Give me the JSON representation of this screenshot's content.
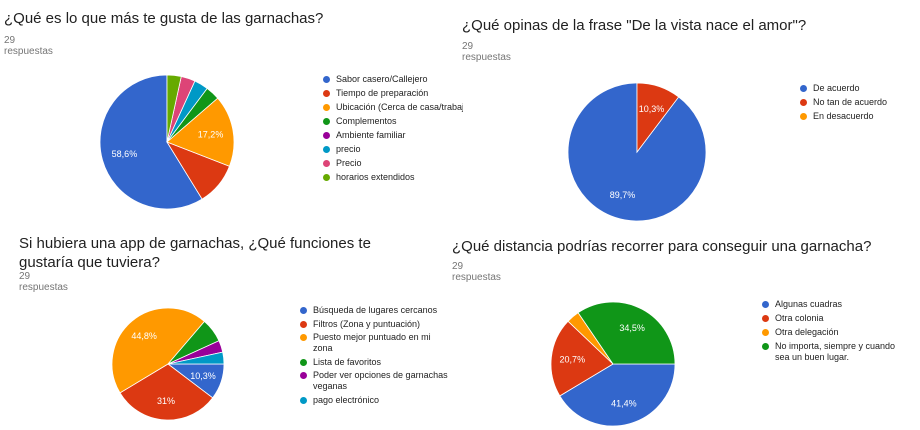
{
  "colors": {
    "blue": "#3366cc",
    "red": "#dc3912",
    "orange": "#ff9900",
    "green": "#109618",
    "purple": "#990099",
    "cyan": "#0099c6",
    "pink": "#dd4477",
    "lime": "#66aa00"
  },
  "chart_data": [
    {
      "type": "pie",
      "title": "¿Qué es lo que más te gusta de las garnachas?",
      "subtitle": "29 respuestas",
      "legend_position": "right",
      "slices": [
        {
          "label": "Sabor casero/Callejero",
          "value": 58.6,
          "color": "#3366cc",
          "data_label": "58,6%"
        },
        {
          "label": "Tiempo de preparación",
          "value": 10.3,
          "color": "#dc3912",
          "data_label": ""
        },
        {
          "label": "Ubicación (Cerca de casa/trabaj",
          "value": 17.2,
          "color": "#ff9900",
          "data_label": "17,2%"
        },
        {
          "label": "Complementos",
          "value": 3.4,
          "color": "#109618",
          "data_label": ""
        },
        {
          "label": "Ambiente familiar",
          "value": 0.0,
          "color": "#990099",
          "data_label": ""
        },
        {
          "label": "precio",
          "value": 3.4,
          "color": "#0099c6",
          "data_label": ""
        },
        {
          "label": "Precio",
          "value": 3.4,
          "color": "#dd4477",
          "data_label": ""
        },
        {
          "label": "horarios extendidos",
          "value": 3.4,
          "color": "#66aa00",
          "data_label": ""
        }
      ]
    },
    {
      "type": "pie",
      "title": "¿Qué opinas de la frase \"De la vista nace el amor\"?",
      "subtitle": "29 respuestas",
      "legend_position": "right",
      "slices": [
        {
          "label": "De acuerdo",
          "value": 89.7,
          "color": "#3366cc",
          "data_label": "89,7%"
        },
        {
          "label": "No tan de acuerdo",
          "value": 10.3,
          "color": "#dc3912",
          "data_label": "10,3%"
        },
        {
          "label": "En desacuerdo",
          "value": 0,
          "color": "#ff9900",
          "data_label": ""
        }
      ]
    },
    {
      "type": "pie",
      "title": "Si hubiera una app de garnachas, ¿Qué funciones te gustaría que tuviera?",
      "subtitle": "29 respuestas",
      "legend_position": "right",
      "slices": [
        {
          "label": "Búsqueda de lugares cercanos",
          "value": 10.3,
          "color": "#3366cc",
          "data_label": "10,3%"
        },
        {
          "label": "Filtros (Zona y puntuación)",
          "value": 31.0,
          "color": "#dc3912",
          "data_label": "31%"
        },
        {
          "label": "Puesto mejor puntuado en mi zona",
          "value": 44.8,
          "color": "#ff9900",
          "data_label": "44,8%"
        },
        {
          "label": "Lista de favoritos",
          "value": 6.9,
          "color": "#109618",
          "data_label": ""
        },
        {
          "label": "Poder ver opciones de garnachas veganas",
          "value": 3.4,
          "color": "#990099",
          "data_label": ""
        },
        {
          "label": "pago electrónico",
          "value": 3.4,
          "color": "#0099c6",
          "data_label": ""
        }
      ]
    },
    {
      "type": "pie",
      "title": "¿Qué distancia podrías recorrer para conseguir una garnacha?",
      "subtitle": "29 respuestas",
      "legend_position": "right",
      "slices": [
        {
          "label": "Algunas cuadras",
          "value": 41.4,
          "color": "#3366cc",
          "data_label": "41,4%"
        },
        {
          "label": "Otra colonia",
          "value": 20.7,
          "color": "#dc3912",
          "data_label": "20,7%"
        },
        {
          "label": "Otra delegación",
          "value": 3.4,
          "color": "#ff9900",
          "data_label": ""
        },
        {
          "label": "No importa, siempre y cuando sea un buen lugar.",
          "value": 34.5,
          "color": "#109618",
          "data_label": "34,5%"
        }
      ]
    }
  ]
}
